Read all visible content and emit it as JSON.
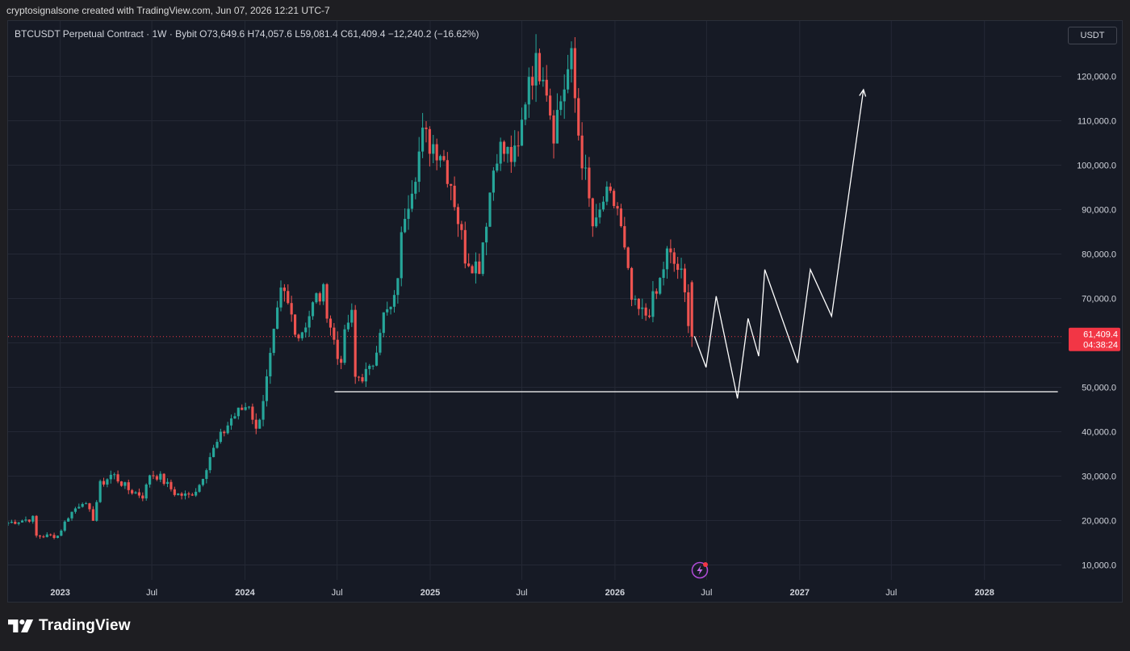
{
  "caption": "cryptosignalsone created with TradingView.com, Jun 07, 2026 12:21 UTC-7",
  "header": {
    "symbol_line": "BTCUSDT Perpetual Contract · 1W · Bybit  O73,649.6  H74,057.6  L59,081.4  C61,409.4  −12,240.2 (−16.62%)",
    "currency_button": "USDT"
  },
  "footer": {
    "brand": "TradingView"
  },
  "colors": {
    "background": "#161a25",
    "grid": "#242835",
    "up": "#26a69a",
    "down": "#ef5350",
    "drawing": "#ffffff",
    "price_label": "#f23645"
  },
  "icons": {
    "alert": "lightning-bolt-icon"
  },
  "chart_data": {
    "type": "candlestick",
    "instrument": "BTCUSDT Perpetual Contract",
    "interval": "1W",
    "exchange": "Bybit",
    "ohlc_last": {
      "open": 73649.6,
      "high": 74057.6,
      "low": 59081.4,
      "close": 61409.4,
      "change": -12240.2,
      "change_pct": -16.62
    },
    "y_ticks": [
      10000,
      20000,
      30000,
      40000,
      50000,
      60000,
      70000,
      80000,
      90000,
      100000,
      110000,
      120000
    ],
    "y_tick_labels": [
      "10,000.0",
      "20,000.0",
      "30,000.0",
      "40,000.0",
      "50,000.0",
      "60,000.0",
      "70,000.0",
      "80,000.0",
      "90,000.0",
      "100,000.0",
      "110,000.0",
      "120,000.0"
    ],
    "ylim": [
      7000,
      127000
    ],
    "xlim": [
      "2022-09-20",
      "2028-06-01"
    ],
    "x_ticks": [
      {
        "date": "2023-01-01",
        "label": "2023",
        "bold": true
      },
      {
        "date": "2023-07-01",
        "label": "Jul",
        "bold": false
      },
      {
        "date": "2024-01-01",
        "label": "2024",
        "bold": true
      },
      {
        "date": "2024-07-01",
        "label": "Jul",
        "bold": false
      },
      {
        "date": "2025-01-01",
        "label": "2025",
        "bold": true
      },
      {
        "date": "2025-07-01",
        "label": "Jul",
        "bold": false
      },
      {
        "date": "2026-01-01",
        "label": "2026",
        "bold": true
      },
      {
        "date": "2026-07-01",
        "label": "Jul",
        "bold": false
      },
      {
        "date": "2027-01-01",
        "label": "2027",
        "bold": true
      },
      {
        "date": "2027-07-01",
        "label": "Jul",
        "bold": false
      },
      {
        "date": "2028-01-01",
        "label": "2028",
        "bold": true
      }
    ],
    "current_price": {
      "value": 61409.4,
      "label": "61,409.4",
      "countdown": "04:38:24"
    },
    "price_path": [
      [
        "2022-09-20",
        19500
      ],
      [
        "2022-11-08",
        20500
      ],
      [
        "2022-11-15",
        16500
      ],
      [
        "2022-12-27",
        16600
      ],
      [
        "2023-01-17",
        21000
      ],
      [
        "2023-02-14",
        24500
      ],
      [
        "2023-03-07",
        20500
      ],
      [
        "2023-03-21",
        28000
      ],
      [
        "2023-04-14",
        30500
      ],
      [
        "2023-05-15",
        27000
      ],
      [
        "2023-06-15",
        25500
      ],
      [
        "2023-06-27",
        30500
      ],
      [
        "2023-07-15",
        30000
      ],
      [
        "2023-08-17",
        26000
      ],
      [
        "2023-09-11",
        25500
      ],
      [
        "2023-10-01",
        27500
      ],
      [
        "2023-10-24",
        34500
      ],
      [
        "2023-12-05",
        43000
      ],
      [
        "2024-01-10",
        46500
      ],
      [
        "2024-01-23",
        40000
      ],
      [
        "2024-02-13",
        51500
      ],
      [
        "2024-03-05",
        66000
      ],
      [
        "2024-03-14",
        72000
      ],
      [
        "2024-04-17",
        61500
      ],
      [
        "2024-05-21",
        70000
      ],
      [
        "2024-06-05",
        71000
      ],
      [
        "2024-07-05",
        55000
      ],
      [
        "2024-07-29",
        68000
      ],
      [
        "2024-08-05",
        52000
      ],
      [
        "2024-09-06",
        53500
      ],
      [
        "2024-09-27",
        65500
      ],
      [
        "2024-10-21",
        68000
      ],
      [
        "2024-11-12",
        90000
      ],
      [
        "2024-12-17",
        106000
      ],
      [
        "2025-01-20",
        104000
      ],
      [
        "2025-02-12",
        96000
      ],
      [
        "2025-03-10",
        80000
      ],
      [
        "2025-04-07",
        77000
      ],
      [
        "2025-05-12",
        104000
      ],
      [
        "2025-06-22",
        101000
      ],
      [
        "2025-07-14",
        121000
      ],
      [
        "2025-08-13",
        123000
      ],
      [
        "2025-09-01",
        108000
      ],
      [
        "2025-10-06",
        124000
      ],
      [
        "2025-10-20",
        108000
      ],
      [
        "2025-11-21",
        84000
      ],
      [
        "2025-12-10",
        92500
      ],
      [
        "2026-01-05",
        91000
      ],
      [
        "2026-02-05",
        68000
      ],
      [
        "2026-03-01",
        66000
      ],
      [
        "2026-03-25",
        71000
      ],
      [
        "2026-04-13",
        80000
      ],
      [
        "2026-05-10",
        76000
      ],
      [
        "2026-06-02",
        61409
      ]
    ],
    "projection_path": [
      [
        "2026-06-07",
        61500
      ],
      [
        "2026-06-30",
        54500
      ],
      [
        "2026-07-20",
        70500
      ],
      [
        "2026-08-31",
        47500
      ],
      [
        "2026-09-21",
        65500
      ],
      [
        "2026-10-12",
        57000
      ],
      [
        "2026-10-24",
        76500
      ],
      [
        "2026-12-28",
        55500
      ],
      [
        "2027-01-22",
        76500
      ],
      [
        "2027-03-05",
        66000
      ],
      [
        "2027-05-07",
        117000
      ]
    ],
    "support_line": {
      "value": 49000,
      "from": "2024-06-26",
      "to": "2028-05-25"
    }
  }
}
